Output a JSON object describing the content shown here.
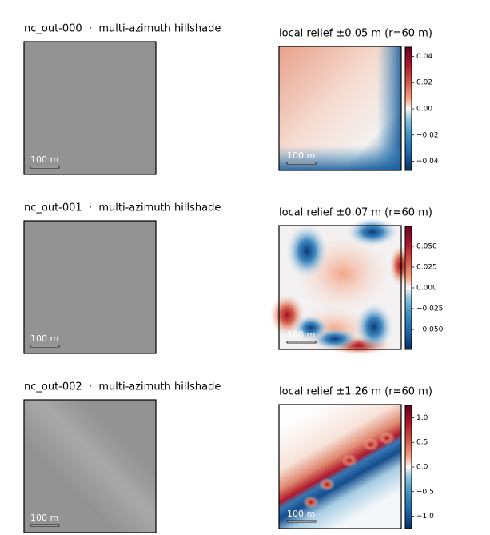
{
  "panels": [
    {
      "hillshade_title": "nc_out-000  ·  multi-azimuth hillshade",
      "scalebar": "100 m",
      "relief_title": "local relief ±0.05 m (r=60 m)",
      "colorbar": {
        "lim": [
          -0.047,
          0.047
        ],
        "ticks": [
          0.04,
          0.02,
          {
            "value": 0,
            "label": "0.00"
          },
          {
            "value": -0.02,
            "label": "−0.02"
          },
          {
            "value": -0.04,
            "label": "−0.04"
          }
        ]
      }
    },
    {
      "hillshade_title": "nc_out-001  ·  multi-azimuth hillshade",
      "scalebar": "100 m",
      "relief_title": "local relief ±0.07 m (r=60 m)",
      "colorbar": {
        "lim": [
          -0.074,
          0.074
        ],
        "ticks": [
          {
            "value": 0.05,
            "label": "0.050"
          },
          0.025,
          {
            "value": 0,
            "label": "0.000"
          },
          {
            "value": -0.025,
            "label": "−0.025"
          },
          {
            "value": -0.05,
            "label": "−0.050"
          }
        ]
      }
    },
    {
      "hillshade_title": "nc_out-002  ·  multi-azimuth hillshade",
      "scalebar": "100 m",
      "relief_title": "local relief ±1.26 m (r=60 m)",
      "colorbar": {
        "lim": [
          -1.25,
          1.25
        ],
        "ticks": [
          {
            "value": 1,
            "label": "1.0"
          },
          0.5,
          {
            "value": 0,
            "label": "0.0"
          },
          {
            "value": -0.5,
            "label": "−0.5"
          },
          {
            "value": -1,
            "label": "−1.0"
          }
        ]
      }
    }
  ]
}
